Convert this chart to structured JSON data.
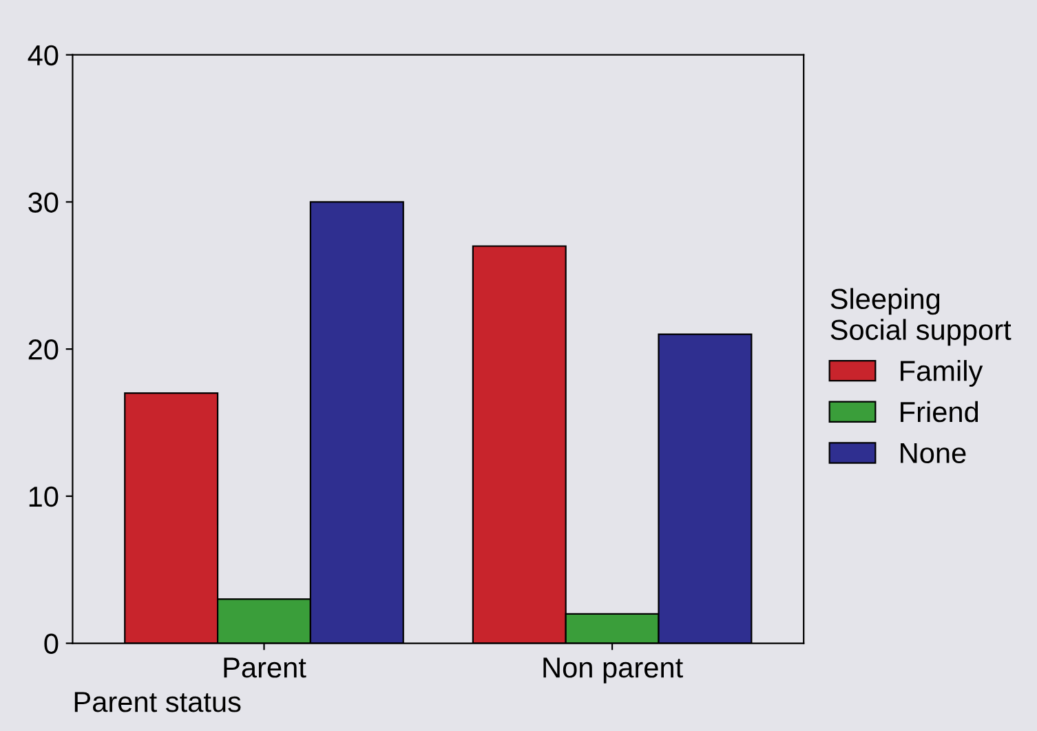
{
  "chart_data": {
    "type": "bar",
    "xlabel": "Parent status",
    "legend_title": "Sleeping\nSocial support",
    "categories": [
      "Parent",
      "Non parent"
    ],
    "series": [
      {
        "name": "Family",
        "color": "#c8242c",
        "values": [
          17,
          27
        ]
      },
      {
        "name": "Friend",
        "color": "#3a9e3a",
        "values": [
          3,
          2
        ]
      },
      {
        "name": "None",
        "color": "#2f2f90",
        "values": [
          30,
          21
        ]
      }
    ],
    "ylim": [
      0,
      40
    ],
    "yticks": [
      0,
      10,
      20,
      30,
      40
    ],
    "grid": false,
    "legend": "right"
  }
}
